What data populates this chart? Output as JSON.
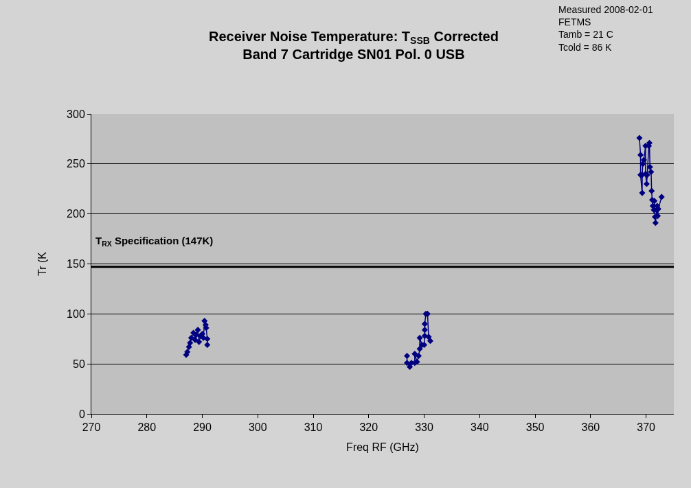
{
  "chart_data": {
    "type": "line",
    "title": "Receiver Noise Temperature: T$_{SSB}$ Corrected",
    "subtitle": "Band 7 Cartridge SN01 Pol. 0 USB",
    "xlabel": "Freq RF (GHz)",
    "ylabel": "Tr (K",
    "annotations": [
      "Measured 2008-02-01",
      "FETMS",
      "Tamb = 21 C",
      "Tcold = 86 K"
    ],
    "x": [
      287.1,
      287.3,
      287.6,
      287.8,
      288.0,
      288.4,
      288.7,
      288.9,
      289.2,
      289.4,
      289.7,
      290.0,
      290.2,
      290.4,
      290.6,
      290.7,
      290.9,
      290.9,
      310,
      326.9,
      326.9,
      327.4,
      327.7,
      328.3,
      328.3,
      328.7,
      329.0,
      329.2,
      329.2,
      329.6,
      330.0,
      330.1,
      330.1,
      330.1,
      330.3,
      330.6,
      330.8,
      331.1,
      350,
      368.8,
      369.0,
      369.0,
      369.3,
      369.3,
      369.4,
      369.6,
      369.9,
      369.9,
      370.1,
      370.2,
      370.5,
      370.6,
      370.7,
      370.9,
      371.0,
      371.1,
      371.2,
      371.4,
      371.5,
      371.6,
      371.7,
      371.9,
      372.0,
      372.1,
      372.2,
      372.8
    ],
    "series": [
      {
        "color": "#000080",
        "values": [
          59,
          62,
          67,
          71,
          76,
          81,
          74,
          79,
          84,
          72,
          78,
          80,
          76,
          93,
          89,
          86,
          75,
          69,
          null,
          58,
          51,
          47,
          51,
          51,
          60,
          52,
          58,
          65,
          76,
          69,
          69,
          78,
          84,
          90,
          100,
          100,
          77,
          73,
          null,
          276,
          259,
          239,
          221,
          239,
          250,
          254,
          268,
          240,
          230,
          239,
          268,
          271,
          247,
          242,
          223,
          214,
          208,
          204,
          213,
          197,
          191,
          204,
          208,
          198,
          205,
          217
        ]
      }
    ],
    "xlim": [
      270,
      375
    ],
    "xticks": [
      270,
      280,
      290,
      300,
      310,
      320,
      330,
      340,
      350,
      360,
      370
    ],
    "ylim": [
      0,
      300
    ],
    "yticks": [
      0,
      50,
      100,
      150,
      200,
      250,
      300
    ],
    "grid": "y",
    "marker": "diamond",
    "line_style": "solid",
    "ref_lines": [
      {
        "axis": "y",
        "value": 147,
        "label": "T$_{RX}$ Specification (147K)",
        "color": "#000000",
        "line_style": "solid"
      }
    ]
  }
}
